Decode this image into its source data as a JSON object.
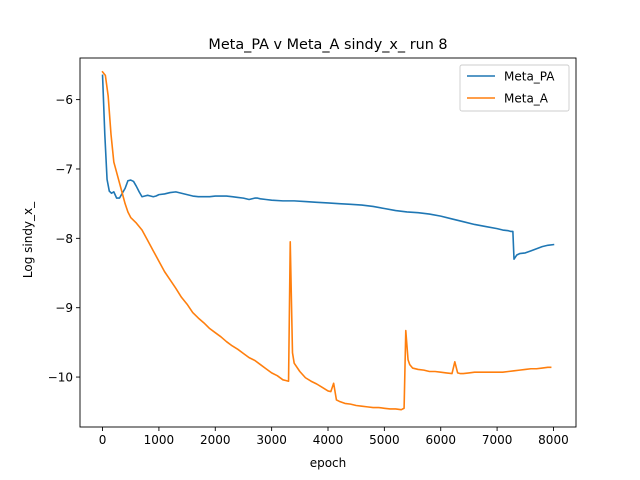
{
  "chart_data": {
    "type": "line",
    "title": "Meta_PA v Meta_A sindy_x_ run 8",
    "xlabel": "epoch",
    "ylabel": "Log sindy_x_",
    "xlim": [
      -400,
      8400
    ],
    "ylim": [
      -10.72,
      -5.4
    ],
    "xticks": [
      0,
      1000,
      2000,
      3000,
      4000,
      5000,
      6000,
      7000,
      8000
    ],
    "xtick_labels": [
      "0",
      "1000",
      "2000",
      "3000",
      "4000",
      "5000",
      "6000",
      "7000",
      "8000"
    ],
    "yticks": [
      -6,
      -7,
      -8,
      -9,
      -10
    ],
    "ytick_labels": [
      "−6",
      "−7",
      "−8",
      "−9",
      "−10"
    ],
    "grid": false,
    "legend_position": "top-right",
    "series": [
      {
        "name": "Meta_PA",
        "color": "#1f77b4",
        "x": [
          0,
          40,
          80,
          120,
          160,
          200,
          250,
          300,
          350,
          400,
          450,
          500,
          550,
          600,
          650,
          700,
          750,
          800,
          850,
          900,
          950,
          1000,
          1100,
          1200,
          1300,
          1400,
          1500,
          1600,
          1700,
          1800,
          1900,
          2000,
          2100,
          2200,
          2300,
          2400,
          2500,
          2600,
          2700,
          2750,
          2800,
          2900,
          3000,
          3200,
          3400,
          3600,
          3800,
          4000,
          4200,
          4400,
          4600,
          4800,
          5000,
          5200,
          5400,
          5600,
          5800,
          6000,
          6200,
          6400,
          6600,
          6800,
          7000,
          7100,
          7200,
          7240,
          7280,
          7300,
          7350,
          7400,
          7500,
          7600,
          7700,
          7800,
          7900,
          8000
        ],
        "y": [
          -5.65,
          -6.5,
          -7.15,
          -7.32,
          -7.35,
          -7.33,
          -7.42,
          -7.42,
          -7.35,
          -7.28,
          -7.17,
          -7.16,
          -7.18,
          -7.25,
          -7.33,
          -7.4,
          -7.39,
          -7.38,
          -7.39,
          -7.4,
          -7.39,
          -7.37,
          -7.36,
          -7.34,
          -7.33,
          -7.35,
          -7.37,
          -7.39,
          -7.4,
          -7.4,
          -7.4,
          -7.39,
          -7.39,
          -7.39,
          -7.4,
          -7.41,
          -7.42,
          -7.44,
          -7.42,
          -7.42,
          -7.43,
          -7.44,
          -7.45,
          -7.46,
          -7.46,
          -7.47,
          -7.48,
          -7.49,
          -7.5,
          -7.51,
          -7.52,
          -7.54,
          -7.57,
          -7.6,
          -7.62,
          -7.63,
          -7.65,
          -7.68,
          -7.72,
          -7.76,
          -7.8,
          -7.83,
          -7.86,
          -7.88,
          -7.89,
          -7.9,
          -7.9,
          -8.3,
          -8.24,
          -8.22,
          -8.21,
          -8.18,
          -8.15,
          -8.12,
          -8.1,
          -8.09
        ]
      },
      {
        "name": "Meta_A",
        "color": "#ff7f0e",
        "x": [
          0,
          50,
          100,
          150,
          200,
          250,
          300,
          350,
          400,
          450,
          500,
          600,
          700,
          800,
          900,
          1000,
          1100,
          1200,
          1300,
          1400,
          1500,
          1600,
          1700,
          1800,
          1900,
          2000,
          2100,
          2200,
          2300,
          2400,
          2500,
          2600,
          2700,
          2800,
          2900,
          3000,
          3100,
          3200,
          3250,
          3300,
          3330,
          3370,
          3400,
          3500,
          3600,
          3700,
          3800,
          3900,
          4000,
          4050,
          4100,
          4150,
          4200,
          4300,
          4400,
          4500,
          4600,
          4700,
          4800,
          4900,
          5000,
          5100,
          5200,
          5300,
          5350,
          5380,
          5420,
          5450,
          5500,
          5600,
          5700,
          5800,
          5900,
          6000,
          6100,
          6200,
          6250,
          6300,
          6350,
          6400,
          6500,
          6600,
          6700,
          6800,
          6900,
          7000,
          7100,
          7200,
          7300,
          7400,
          7500,
          7600,
          7700,
          7800,
          7900,
          7950
        ],
        "y": [
          -5.6,
          -5.65,
          -5.95,
          -6.5,
          -6.9,
          -7.05,
          -7.2,
          -7.35,
          -7.5,
          -7.62,
          -7.7,
          -7.78,
          -7.88,
          -8.03,
          -8.18,
          -8.33,
          -8.48,
          -8.6,
          -8.72,
          -8.85,
          -8.95,
          -9.07,
          -9.15,
          -9.22,
          -9.3,
          -9.36,
          -9.42,
          -9.49,
          -9.55,
          -9.6,
          -9.66,
          -9.72,
          -9.76,
          -9.82,
          -9.88,
          -9.94,
          -9.98,
          -10.04,
          -10.05,
          -10.06,
          -8.05,
          -9.65,
          -9.8,
          -9.92,
          -10.01,
          -10.06,
          -10.1,
          -10.15,
          -10.2,
          -10.21,
          -10.09,
          -10.33,
          -10.35,
          -10.38,
          -10.39,
          -10.41,
          -10.42,
          -10.43,
          -10.44,
          -10.44,
          -10.45,
          -10.46,
          -10.46,
          -10.47,
          -10.45,
          -9.33,
          -9.75,
          -9.82,
          -9.87,
          -9.89,
          -9.9,
          -9.92,
          -9.92,
          -9.93,
          -9.94,
          -9.95,
          -9.78,
          -9.94,
          -9.95,
          -9.95,
          -9.94,
          -9.93,
          -9.93,
          -9.93,
          -9.93,
          -9.93,
          -9.93,
          -9.92,
          -9.91,
          -9.9,
          -9.89,
          -9.88,
          -9.88,
          -9.87,
          -9.86,
          -9.86
        ]
      }
    ]
  }
}
